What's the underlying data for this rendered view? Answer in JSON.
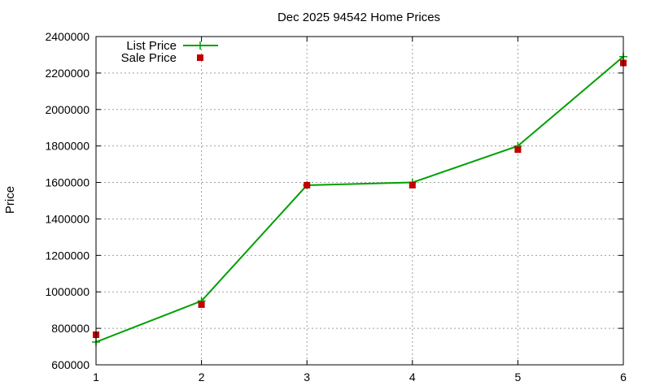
{
  "chart_data": {
    "type": "line",
    "title": "Dec 2025 94542 Home Prices",
    "xlabel": "",
    "ylabel": "Price",
    "x": [
      1,
      2,
      3,
      4,
      5,
      6
    ],
    "xlim": [
      1,
      6
    ],
    "ylim": [
      600000,
      2400000
    ],
    "xticks": [
      1,
      2,
      3,
      4,
      5,
      6
    ],
    "yticks": [
      600000,
      800000,
      1000000,
      1200000,
      1400000,
      1600000,
      1800000,
      2000000,
      2200000,
      2400000
    ],
    "grid": true,
    "legend": "top-left",
    "series": [
      {
        "name": "List Price",
        "style": "line-points",
        "marker": "plus",
        "color": "#00a000",
        "values": [
          725000,
          950000,
          1585000,
          1600000,
          1800000,
          2290000
        ]
      },
      {
        "name": "Sale Price",
        "style": "points",
        "marker": "square",
        "color": "#c00000",
        "values": [
          765000,
          930000,
          1585000,
          1585000,
          1780000,
          2255000
        ]
      }
    ]
  }
}
